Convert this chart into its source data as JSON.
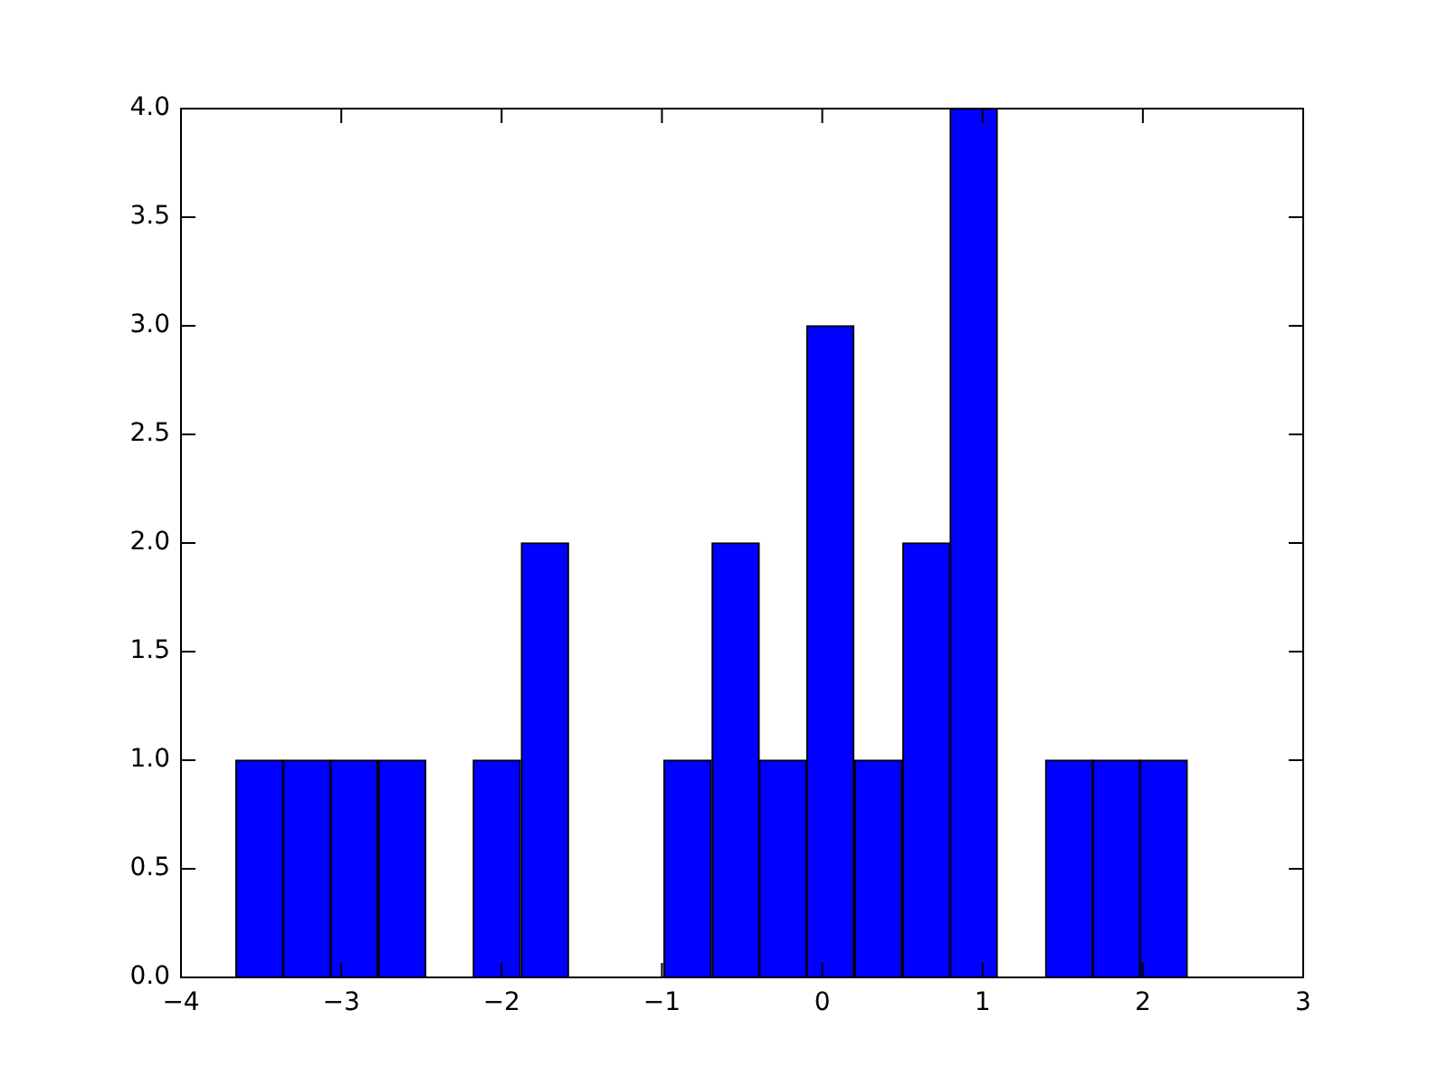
{
  "chart_data": {
    "type": "histogram",
    "color": "#0000ff",
    "bins": [
      -3.66,
      -3.36,
      -3.07,
      -2.77,
      -2.47,
      -2.18,
      -1.88,
      -1.58,
      -1.28,
      -0.99,
      -0.69,
      -0.39,
      -0.1,
      0.2,
      0.5,
      0.8,
      1.09,
      1.39,
      1.69,
      1.98,
      2.28
    ],
    "values": [
      1,
      1,
      1,
      1,
      0,
      1,
      2,
      0,
      0,
      1,
      2,
      1,
      3,
      1,
      2,
      4,
      0,
      1,
      1,
      1
    ],
    "xlim": [
      -4,
      3
    ],
    "xticks": [
      {
        "value": -4,
        "label": "−4"
      },
      {
        "value": -3,
        "label": "−3"
      },
      {
        "value": -2,
        "label": "−2"
      },
      {
        "value": -1,
        "label": "−1"
      },
      0,
      1,
      2,
      3
    ],
    "ylim": [
      0,
      4
    ],
    "yticks": [
      {
        "value": 0,
        "label": "0.0"
      },
      {
        "value": 0.5,
        "label": "0.5"
      },
      {
        "value": 1,
        "label": "1.0"
      },
      {
        "value": 1.5,
        "label": "1.5"
      },
      {
        "value": 2,
        "label": "2.0"
      },
      {
        "value": 2.5,
        "label": "2.5"
      },
      {
        "value": 3,
        "label": "3.0"
      },
      {
        "value": 3.5,
        "label": "3.5"
      },
      {
        "value": 4,
        "label": "4.0"
      }
    ],
    "grid": false
  }
}
